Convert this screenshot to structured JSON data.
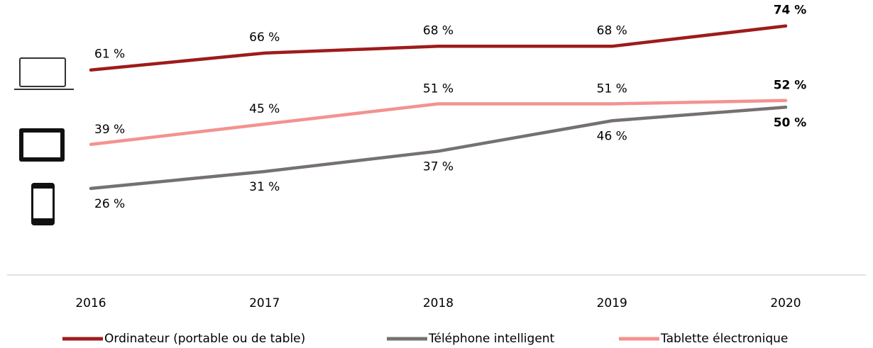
{
  "chart_data": {
    "type": "line",
    "categories": [
      "2016",
      "2017",
      "2018",
      "2019",
      "2020"
    ],
    "series": [
      {
        "name": "Ordinateur (portable ou de table)",
        "color": "#9e1b1b",
        "values": [
          61,
          66,
          68,
          68,
          74
        ],
        "value_labels": [
          "61 %",
          "66 %",
          "68 %",
          "68 %",
          "74 %"
        ]
      },
      {
        "name": "Téléphone intelligent",
        "color": "#767171",
        "values": [
          26,
          31,
          37,
          46,
          50
        ],
        "value_labels": [
          "26 %",
          "31 %",
          "37 %",
          "46 %",
          "50 %"
        ]
      },
      {
        "name": "Tablette électronique",
        "color": "#f4928f",
        "values": [
          39,
          45,
          51,
          51,
          52
        ],
        "value_labels": [
          "39 %",
          "45 %",
          "51 %",
          "51 %",
          "52 %"
        ]
      }
    ],
    "ylim": [
      0,
      80
    ],
    "legend": "bottom"
  }
}
